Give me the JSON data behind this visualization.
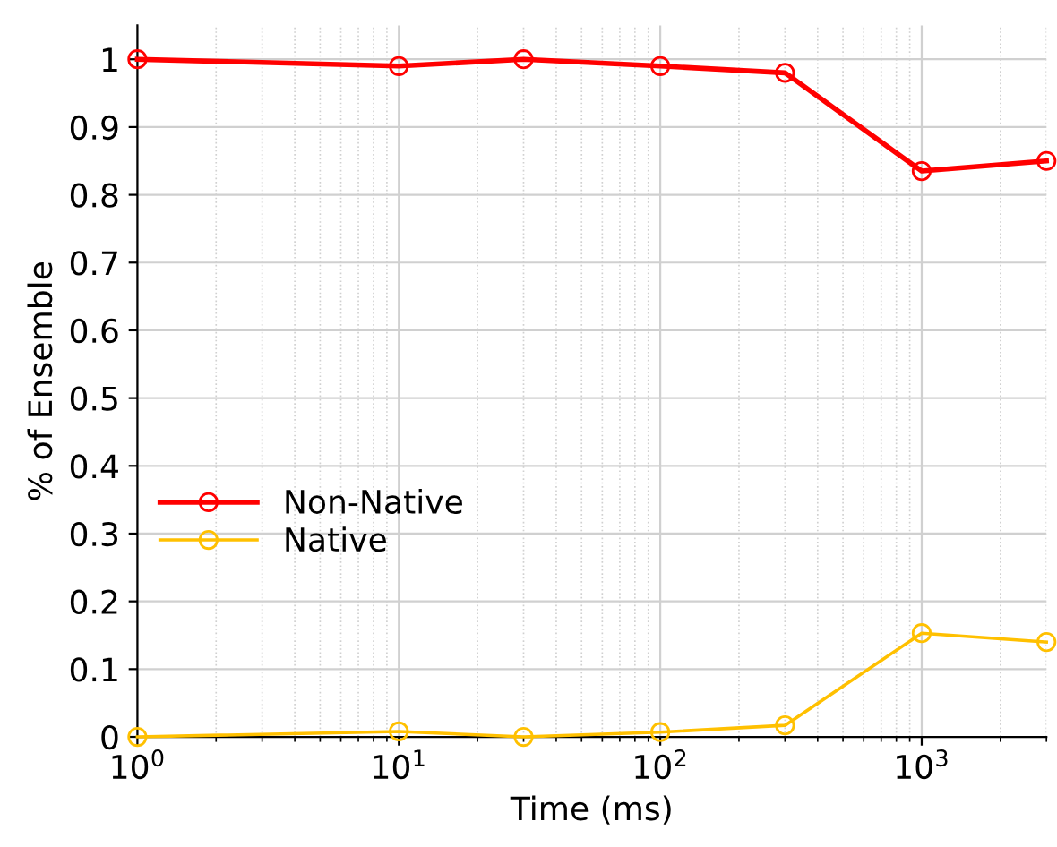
{
  "chart_data": {
    "type": "line",
    "xlabel": "Time (ms)",
    "ylabel": "% of Ensemble",
    "log": "x",
    "x": [
      1,
      10,
      30,
      100,
      300,
      1000,
      3000
    ],
    "series": [
      {
        "name": "Non-Native",
        "color": "#ff0000",
        "values": [
          1,
          0.99,
          1,
          0.99,
          0.98,
          0.835,
          0.85
        ]
      },
      {
        "name": "Native",
        "color": "#ffc000",
        "values": [
          0,
          0.008,
          0,
          0.007,
          0.017,
          0.153,
          0.14
        ]
      }
    ],
    "xlim": [
      1,
      3000
    ],
    "xticks": [
      {
        "value": 1,
        "label": "10$^{0}$"
      },
      {
        "value": 10,
        "label": "10$^{1}$"
      },
      {
        "value": 100,
        "label": "10$^{2}$"
      },
      {
        "value": 1000,
        "label": "10$^{3}$"
      }
    ],
    "ylim": [
      0,
      1.05
    ],
    "yticks": [
      0,
      0.1,
      0.2,
      0.3,
      0.4,
      0.5,
      0.6,
      0.7,
      0.8,
      0.9,
      1
    ],
    "grid": true,
    "legend": "left",
    "marker": "circle",
    "line_style": "solid"
  }
}
